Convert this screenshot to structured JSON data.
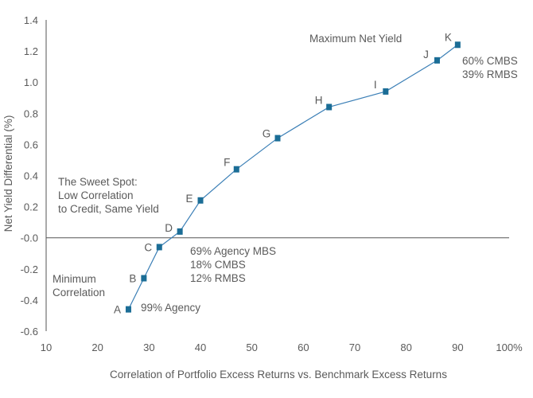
{
  "chart_data": {
    "type": "line",
    "title": "",
    "xlabel": "Correlation of Portfolio Excess Returns vs. Benchmark Excess Returns",
    "ylabel": "Net Yield Differential (%)",
    "xlim": [
      10,
      100
    ],
    "ylim": [
      -0.6,
      1.4
    ],
    "x_ticks": [
      10,
      20,
      30,
      40,
      50,
      60,
      70,
      80,
      90,
      100
    ],
    "x_tick_labels": [
      "10",
      "20",
      "30",
      "40",
      "50",
      "60",
      "70",
      "80",
      "90",
      "100%"
    ],
    "y_ticks": [
      -0.6,
      -0.4,
      -0.2,
      0.0,
      0.2,
      0.4,
      0.6,
      0.8,
      1.0,
      1.2,
      1.4
    ],
    "y_tick_labels": [
      "-0.6",
      "-0.4",
      "-0.2",
      "-0.0",
      "0.2",
      "0.4",
      "0.6",
      "0.8",
      "1.0",
      "1.2",
      "1.4"
    ],
    "grid": false,
    "zero_line": true,
    "series": [
      {
        "points": [
          {
            "label": "A",
            "x": 26,
            "y": -0.46
          },
          {
            "label": "B",
            "x": 29,
            "y": -0.26
          },
          {
            "label": "C",
            "x": 32,
            "y": -0.06
          },
          {
            "label": "D",
            "x": 36,
            "y": 0.04
          },
          {
            "label": "E",
            "x": 40,
            "y": 0.24
          },
          {
            "label": "F",
            "x": 47,
            "y": 0.44
          },
          {
            "label": "G",
            "x": 55,
            "y": 0.64
          },
          {
            "label": "H",
            "x": 65,
            "y": 0.84
          },
          {
            "label": "I",
            "x": 76,
            "y": 0.94
          },
          {
            "label": "J",
            "x": 86,
            "y": 1.14
          },
          {
            "label": "K",
            "x": 90,
            "y": 1.24
          }
        ]
      }
    ],
    "annotations": {
      "max_net_yield": "Maximum Net Yield",
      "k_mix": [
        "60% CMBS",
        "39% RMBS"
      ],
      "sweet_spot": [
        "The Sweet Spot:",
        "Low Correlation",
        "to Credit, Same Yield"
      ],
      "c_mix": [
        "69% Agency MBS",
        "18% CMBS",
        "12% RMBS"
      ],
      "min_corr": [
        "Minimum",
        "Correlation"
      ],
      "a_mix": "99% Agency"
    },
    "colors": {
      "line": "#3b7fb6",
      "marker": "#1b6d96",
      "axis": "#555555",
      "text": "#5a5a5a"
    }
  }
}
